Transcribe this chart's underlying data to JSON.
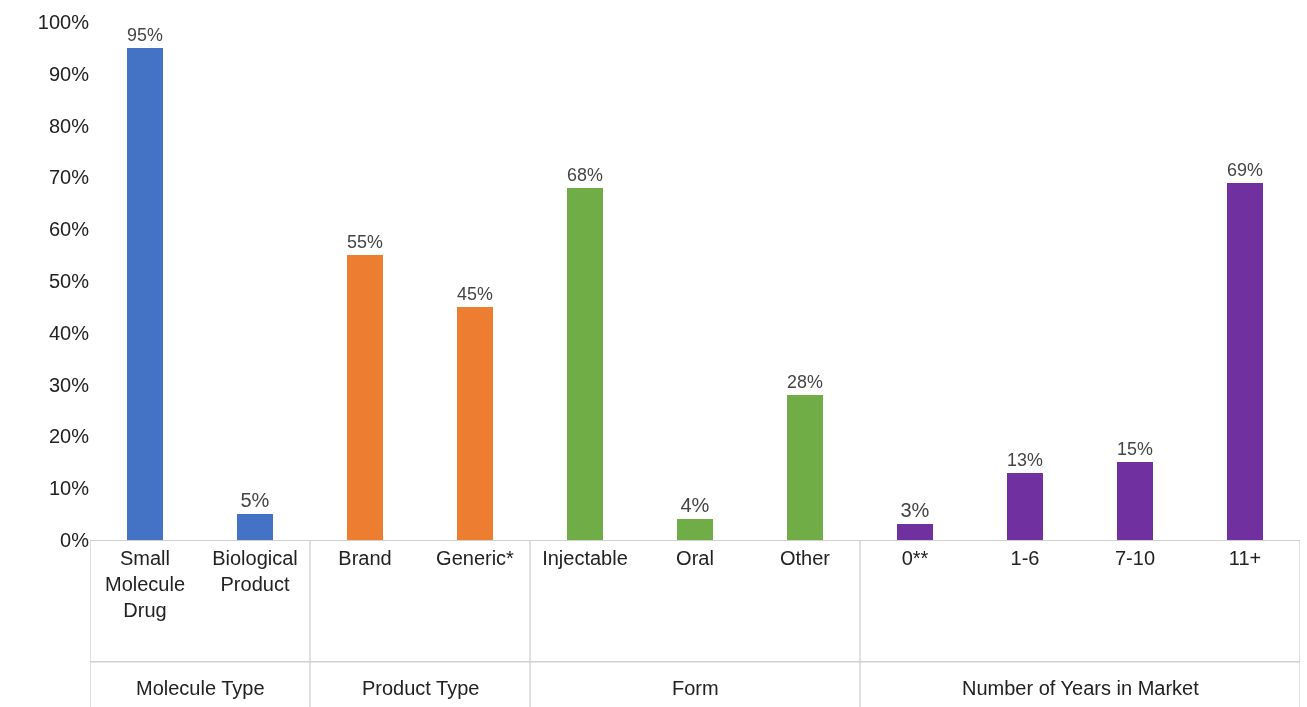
{
  "chart_data": {
    "type": "bar",
    "categories": [
      "Small Molecule Drug",
      "Biological Product",
      "Brand",
      "Generic*",
      "Injectable",
      "Oral",
      "Other",
      "0**",
      "1-6",
      "7-10",
      "11+"
    ],
    "series": [
      {
        "color": "#4472c4",
        "values": [
          95,
          5,
          null,
          null,
          null,
          null,
          null,
          null,
          null,
          null,
          null
        ],
        "value_labels": [
          "95%",
          "5%",
          null,
          null,
          null,
          null,
          null,
          null,
          null,
          null,
          null
        ]
      },
      {
        "color": "#ed7d31",
        "values": [
          null,
          null,
          55,
          45,
          null,
          null,
          null,
          null,
          null,
          null,
          null
        ],
        "value_labels": [
          null,
          null,
          "55%",
          "45%",
          null,
          null,
          null,
          null,
          null,
          null,
          null
        ]
      },
      {
        "color": "#70ad47",
        "values": [
          null,
          null,
          null,
          null,
          68,
          4,
          28,
          null,
          null,
          null,
          null
        ],
        "value_labels": [
          null,
          null,
          null,
          null,
          "68%",
          "4%",
          "28%",
          null,
          null,
          null,
          null
        ]
      },
      {
        "color": "#7030a0",
        "values": [
          null,
          null,
          null,
          null,
          null,
          null,
          null,
          3,
          13,
          15,
          69
        ],
        "value_labels": [
          null,
          null,
          null,
          null,
          null,
          null,
          null,
          "3%",
          "13%",
          "15%",
          "69%"
        ]
      }
    ],
    "ylim": [
      0,
      100
    ],
    "yticks": [
      {
        "value": 0,
        "label": "0%"
      },
      {
        "value": 10,
        "label": "10%"
      },
      {
        "value": 20,
        "label": "20%"
      },
      {
        "value": 30,
        "label": "30%"
      },
      {
        "value": 40,
        "label": "40%"
      },
      {
        "value": 50,
        "label": "50%"
      },
      {
        "value": 60,
        "label": "60%"
      },
      {
        "value": 70,
        "label": "70%"
      },
      {
        "value": 80,
        "label": "80%"
      },
      {
        "value": 90,
        "label": "90%"
      },
      {
        "value": 100,
        "label": "100%"
      }
    ],
    "annotations": [
      "Molecule Type",
      "Product Type",
      "Form",
      "Number of Years in Market"
    ],
    "grid": false,
    "legend": false
  }
}
